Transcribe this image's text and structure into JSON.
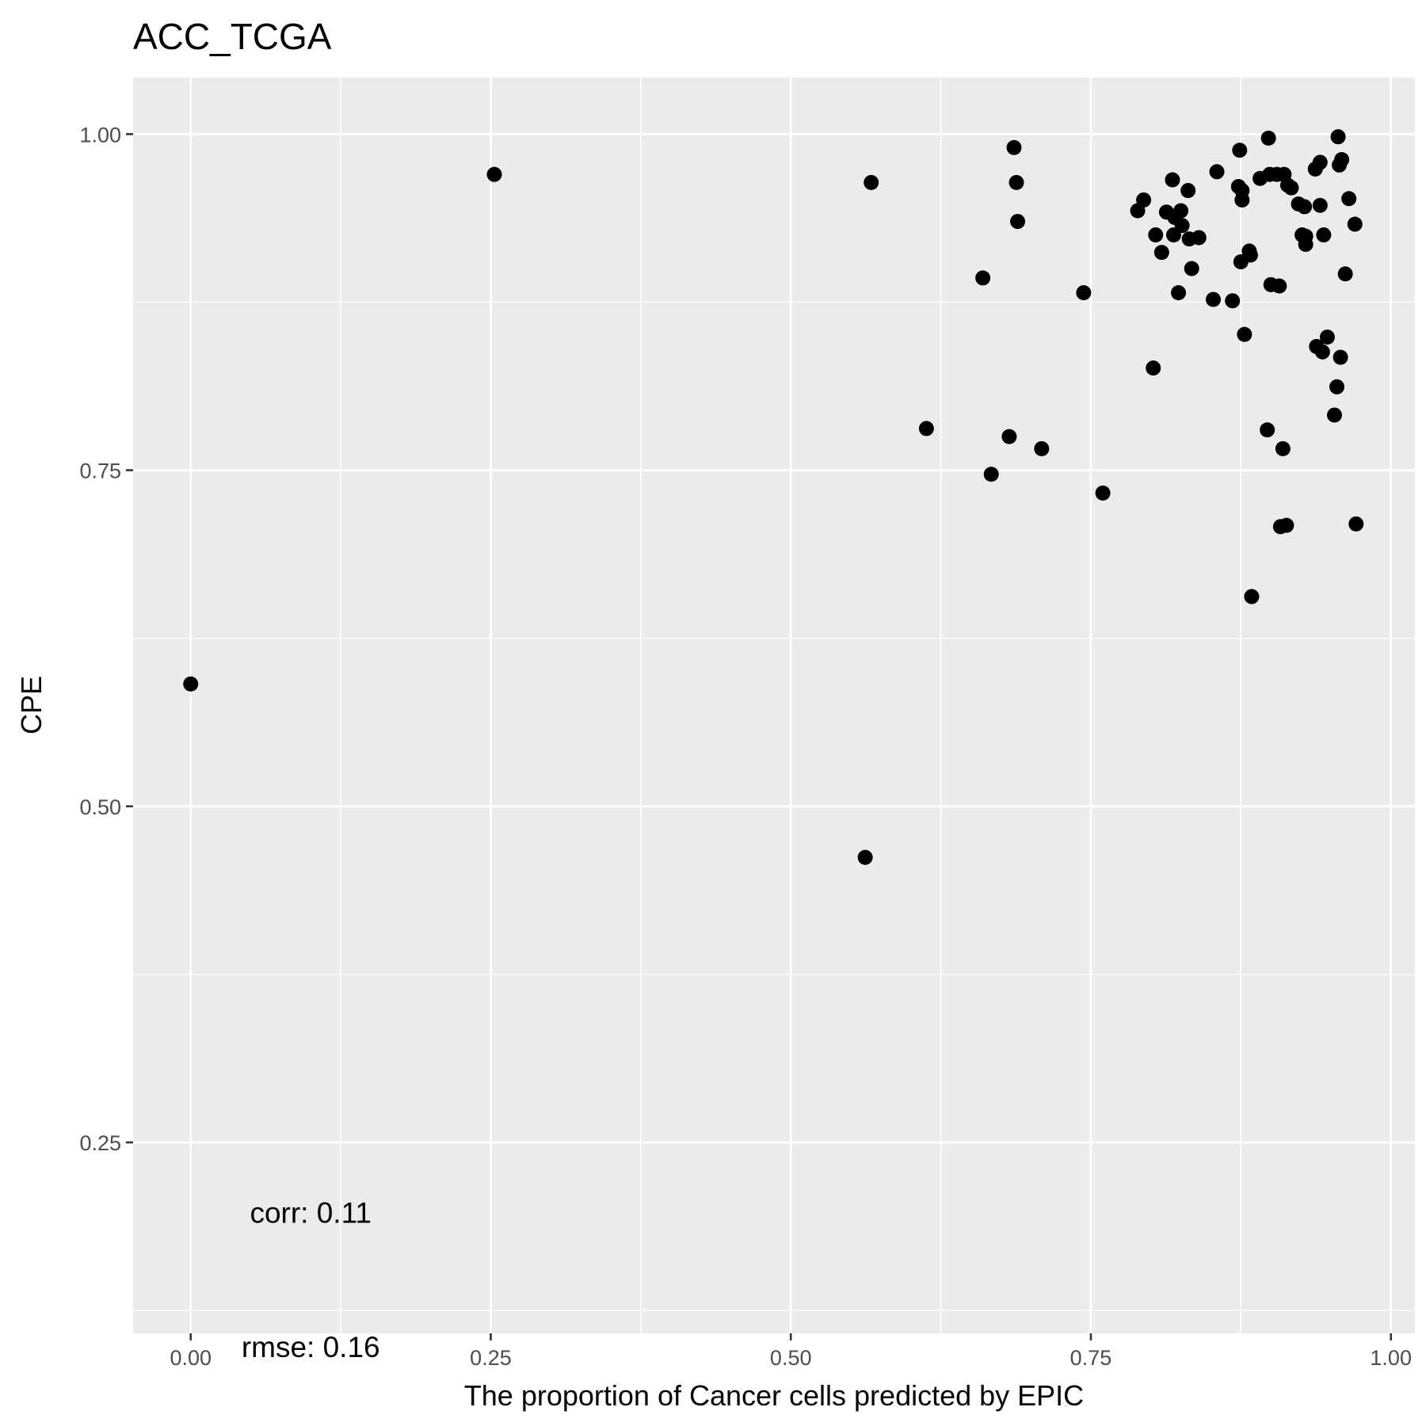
{
  "chart_data": {
    "type": "scatter",
    "title": "ACC_TCGA",
    "xlabel": "The proportion of Cancer cells predicted by EPIC",
    "ylabel": "CPE",
    "xlim": [
      -0.048,
      1.02
    ],
    "ylim": [
      0.108,
      1.042
    ],
    "x_ticks": [
      0.0,
      0.25,
      0.5,
      0.75,
      1.0
    ],
    "x_tick_labels": [
      "0.00",
      "0.25",
      "0.50",
      "0.75",
      "1.00"
    ],
    "y_ticks": [
      0.25,
      0.5,
      0.75,
      1.0
    ],
    "y_tick_labels": [
      "0.25",
      "0.50",
      "0.75",
      "1.00"
    ],
    "grid": true,
    "panel_background": "#ebebeb",
    "point_color": "#000000",
    "annotations": [
      {
        "text": "corr: 0.11",
        "x": 0.1,
        "y": 0.198
      },
      {
        "text": "rmse: 0.16",
        "x": 0.1,
        "y": 0.098
      }
    ],
    "points": [
      [
        0.0,
        0.591
      ],
      [
        0.253,
        0.97
      ],
      [
        0.567,
        0.964
      ],
      [
        0.562,
        0.462
      ],
      [
        0.613,
        0.781
      ],
      [
        0.66,
        0.893
      ],
      [
        0.667,
        0.747
      ],
      [
        0.682,
        0.775
      ],
      [
        0.686,
        0.99
      ],
      [
        0.688,
        0.964
      ],
      [
        0.689,
        0.935
      ],
      [
        0.709,
        0.766
      ],
      [
        0.744,
        0.882
      ],
      [
        0.76,
        0.733
      ],
      [
        0.789,
        0.943
      ],
      [
        0.794,
        0.951
      ],
      [
        0.802,
        0.826
      ],
      [
        0.804,
        0.925
      ],
      [
        0.809,
        0.912
      ],
      [
        0.813,
        0.942
      ],
      [
        0.818,
        0.966
      ],
      [
        0.819,
        0.925
      ],
      [
        0.82,
        0.938
      ],
      [
        0.823,
        0.882
      ],
      [
        0.825,
        0.943
      ],
      [
        0.826,
        0.932
      ],
      [
        0.831,
        0.958
      ],
      [
        0.832,
        0.922
      ],
      [
        0.834,
        0.9
      ],
      [
        0.84,
        0.923
      ],
      [
        0.852,
        0.877
      ],
      [
        0.855,
        0.972
      ],
      [
        0.868,
        0.876
      ],
      [
        0.873,
        0.961
      ],
      [
        0.874,
        0.988
      ],
      [
        0.875,
        0.905
      ],
      [
        0.876,
        0.958
      ],
      [
        0.876,
        0.951
      ],
      [
        0.878,
        0.851
      ],
      [
        0.882,
        0.913
      ],
      [
        0.883,
        0.91
      ],
      [
        0.884,
        0.656
      ],
      [
        0.891,
        0.967
      ],
      [
        0.897,
        0.78
      ],
      [
        0.898,
        0.997
      ],
      [
        0.899,
        0.97
      ],
      [
        0.9,
        0.888
      ],
      [
        0.905,
        0.97
      ],
      [
        0.907,
        0.887
      ],
      [
        0.908,
        0.708
      ],
      [
        0.91,
        0.766
      ],
      [
        0.911,
        0.97
      ],
      [
        0.913,
        0.709
      ],
      [
        0.914,
        0.962
      ],
      [
        0.917,
        0.96
      ],
      [
        0.923,
        0.948
      ],
      [
        0.926,
        0.925
      ],
      [
        0.928,
        0.946
      ],
      [
        0.929,
        0.924
      ],
      [
        0.929,
        0.918
      ],
      [
        0.937,
        0.974
      ],
      [
        0.938,
        0.842
      ],
      [
        0.941,
        0.979
      ],
      [
        0.941,
        0.947
      ],
      [
        0.943,
        0.838
      ],
      [
        0.944,
        0.925
      ],
      [
        0.947,
        0.849
      ],
      [
        0.953,
        0.791
      ],
      [
        0.955,
        0.812
      ],
      [
        0.956,
        0.998
      ],
      [
        0.957,
        0.977
      ],
      [
        0.958,
        0.834
      ],
      [
        0.959,
        0.981
      ],
      [
        0.962,
        0.896
      ],
      [
        0.965,
        0.952
      ],
      [
        0.97,
        0.933
      ],
      [
        0.971,
        0.71
      ]
    ]
  }
}
